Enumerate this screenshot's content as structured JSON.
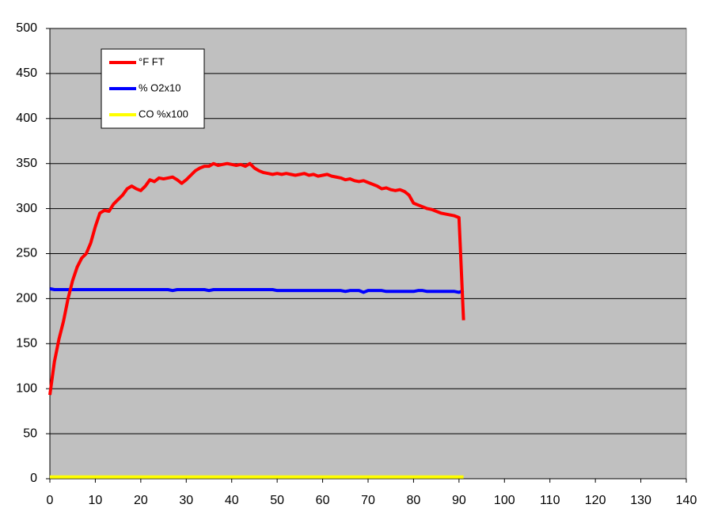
{
  "chart_data": {
    "type": "line",
    "x": [
      0,
      1,
      2,
      3,
      4,
      5,
      6,
      7,
      8,
      9,
      10,
      11,
      12,
      13,
      14,
      15,
      16,
      17,
      18,
      19,
      20,
      21,
      22,
      23,
      24,
      25,
      26,
      27,
      28,
      29,
      30,
      31,
      32,
      33,
      34,
      35,
      36,
      37,
      38,
      39,
      40,
      41,
      42,
      43,
      44,
      45,
      46,
      47,
      48,
      49,
      50,
      51,
      52,
      53,
      54,
      55,
      56,
      57,
      58,
      59,
      60,
      61,
      62,
      63,
      64,
      65,
      66,
      67,
      68,
      69,
      70,
      71,
      72,
      73,
      74,
      75,
      76,
      77,
      78,
      79,
      80,
      81,
      82,
      83,
      84,
      85,
      86,
      87,
      88,
      89,
      90,
      91
    ],
    "series": [
      {
        "name": "°F FT",
        "color": "#ff0000",
        "values": [
          93,
          130,
          155,
          175,
          200,
          220,
          235,
          245,
          250,
          262,
          280,
          295,
          298,
          297,
          305,
          310,
          315,
          322,
          325,
          322,
          320,
          325,
          332,
          330,
          334,
          333,
          334,
          335,
          332,
          328,
          332,
          337,
          342,
          345,
          347,
          347,
          350,
          348,
          349,
          350,
          349,
          348,
          349,
          347,
          350,
          345,
          342,
          340,
          339,
          338,
          339,
          338,
          339,
          338,
          337,
          338,
          339,
          337,
          338,
          336,
          337,
          338,
          336,
          335,
          334,
          332,
          333,
          331,
          330,
          331,
          329,
          327,
          325,
          322,
          323,
          321,
          320,
          321,
          319,
          315,
          306,
          304,
          302,
          300,
          299,
          297,
          295,
          294,
          293,
          292,
          290,
          176
        ]
      },
      {
        "name": "% O2x10",
        "color": "#0000ff",
        "values": [
          211,
          210,
          210,
          210,
          210,
          210,
          210,
          210,
          210,
          210,
          210,
          210,
          210,
          210,
          210,
          210,
          210,
          210,
          210,
          210,
          210,
          210,
          210,
          210,
          210,
          210,
          210,
          209,
          210,
          210,
          210,
          210,
          210,
          210,
          210,
          209,
          210,
          210,
          210,
          210,
          210,
          210,
          210,
          210,
          210,
          210,
          210,
          210,
          210,
          210,
          209,
          209,
          209,
          209,
          209,
          209,
          209,
          209,
          209,
          209,
          209,
          209,
          209,
          209,
          209,
          208,
          209,
          209,
          209,
          207,
          209,
          209,
          209,
          209,
          208,
          208,
          208,
          208,
          208,
          208,
          208,
          209,
          209,
          208,
          208,
          208,
          208,
          208,
          208,
          208,
          207,
          209
        ]
      },
      {
        "name": "CO %x100",
        "color": "#ffff00",
        "values": [
          2,
          2,
          2,
          2,
          2,
          2,
          2,
          2,
          2,
          2,
          2,
          2,
          2,
          2,
          2,
          2,
          2,
          2,
          2,
          2,
          2,
          2,
          2,
          2,
          2,
          2,
          2,
          2,
          2,
          2,
          2,
          2,
          2,
          2,
          2,
          2,
          2,
          2,
          2,
          2,
          2,
          2,
          2,
          2,
          2,
          2,
          2,
          2,
          2,
          2,
          2,
          2,
          2,
          2,
          2,
          2,
          2,
          2,
          2,
          2,
          2,
          2,
          2,
          2,
          2,
          2,
          2,
          2,
          2,
          2,
          2,
          2,
          2,
          2,
          2,
          2,
          2,
          2,
          2,
          2,
          2,
          2,
          2,
          2,
          2,
          2,
          2,
          2,
          2,
          2,
          2,
          2
        ]
      }
    ],
    "xlim": [
      0,
      140
    ],
    "xticks": [
      0,
      10,
      20,
      30,
      40,
      50,
      60,
      70,
      80,
      90,
      100,
      110,
      120,
      130,
      140
    ],
    "ylim": [
      0,
      500
    ],
    "yticks": [
      0,
      50,
      100,
      150,
      200,
      250,
      300,
      350,
      400,
      450,
      500
    ],
    "grid": true,
    "legend": "upper-left"
  }
}
